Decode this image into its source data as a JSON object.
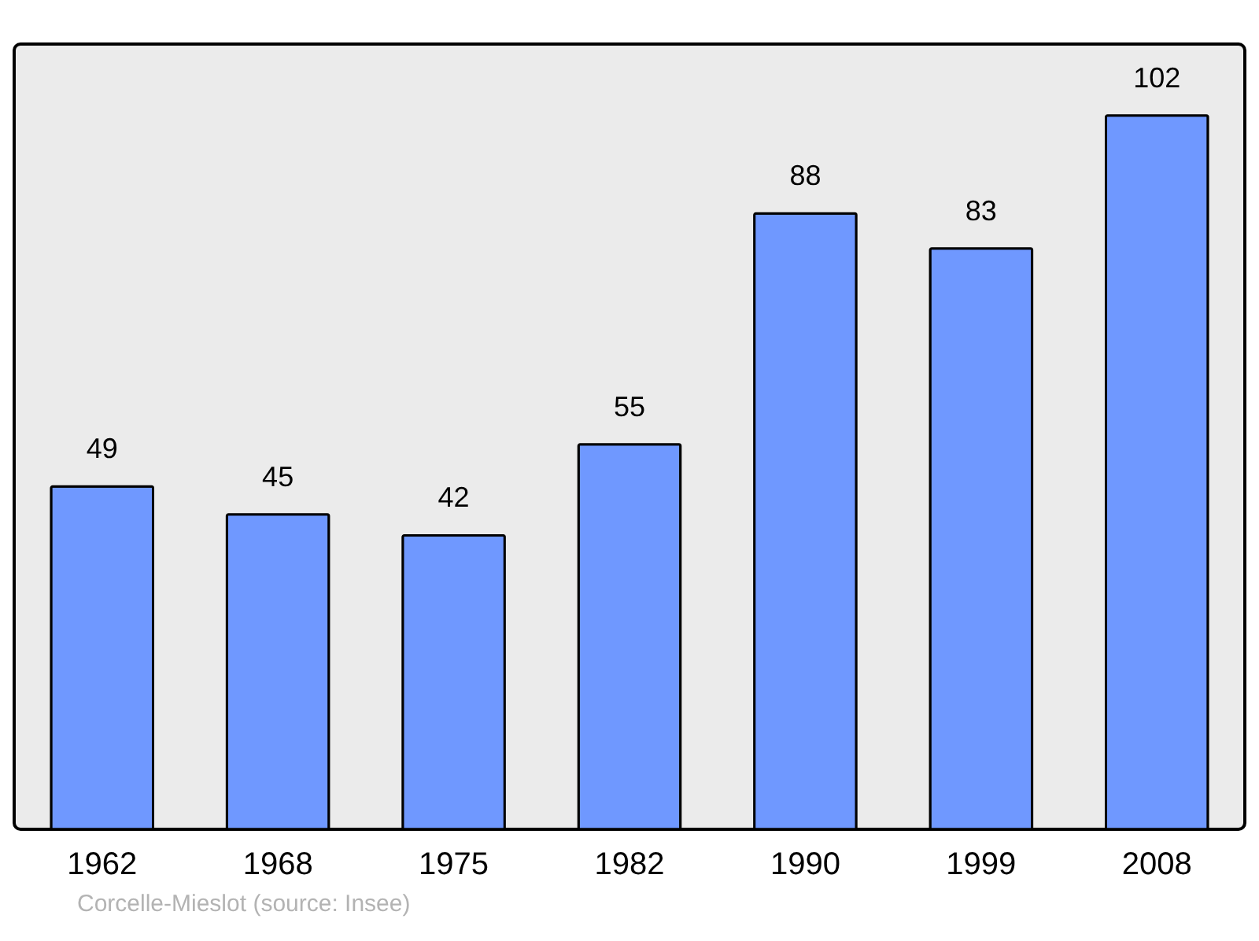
{
  "chart_data": {
    "type": "bar",
    "categories": [
      "1962",
      "1968",
      "1975",
      "1982",
      "1990",
      "1999",
      "2008"
    ],
    "values": [
      49,
      45,
      42,
      55,
      88,
      83,
      102
    ],
    "color": "#6f98ff",
    "data_labels": true,
    "grid": false,
    "annotations": [
      "Corcelle-Mieslot    (source: Insee)"
    ]
  }
}
